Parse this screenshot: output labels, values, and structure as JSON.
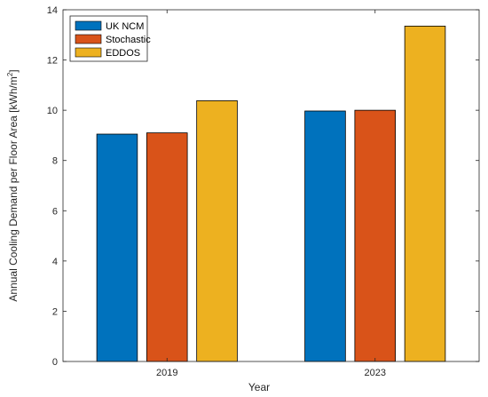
{
  "chart_data": {
    "type": "bar",
    "categories": [
      "2019",
      "2023"
    ],
    "series": [
      {
        "name": "UK NCM",
        "color": "#0072BD",
        "values": [
          9.05,
          9.97
        ]
      },
      {
        "name": "Stochastic",
        "color": "#D95319",
        "values": [
          9.1,
          10.0
        ]
      },
      {
        "name": "EDDOS",
        "color": "#EDB120",
        "values": [
          10.38,
          13.35
        ]
      }
    ],
    "xlabel": "Year",
    "ylabel_main": "Annual Cooling Demand per Floor Area [kWh/m",
    "ylabel_sup": "2",
    "ylabel_end": "]",
    "ylim": [
      0,
      14
    ],
    "yticks": [
      0,
      2,
      4,
      6,
      8,
      10,
      12,
      14
    ],
    "grid": false,
    "legend_position": "top-left"
  }
}
